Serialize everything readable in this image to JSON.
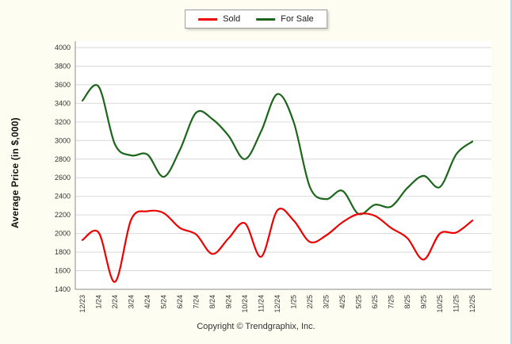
{
  "page": {
    "background": "#fdfdf2",
    "copyright": "Copyright © Trendgraphix, Inc."
  },
  "legend": {
    "items": [
      {
        "id": "sold",
        "label": "Sold",
        "color": "#ee0000"
      },
      {
        "id": "for-sale",
        "label": "For Sale",
        "color": "#1b661b"
      }
    ]
  },
  "chart_data": {
    "type": "line",
    "title": "",
    "xlabel": "",
    "ylabel": "Average Price (in $,000)",
    "ylim": [
      1400,
      4000
    ],
    "ytick_step": 200,
    "grid": "horizontal",
    "legend_position": "top-center",
    "line_style": "smooth",
    "categories": [
      "12/23",
      "1/24",
      "2/24",
      "3/24",
      "4/24",
      "5/24",
      "6/24",
      "7/24",
      "8/24",
      "9/24",
      "10/24",
      "11/24",
      "12/24",
      "1/25",
      "2/25",
      "3/25",
      "4/25",
      "5/25",
      "6/25",
      "7/25",
      "8/25",
      "9/25",
      "10/25",
      "11/25",
      "12/25"
    ],
    "series": [
      {
        "name": "Sold",
        "color": "#ee0000",
        "values": [
          1930,
          2010,
          1480,
          2150,
          2240,
          2220,
          2060,
          1990,
          1780,
          1950,
          2110,
          1750,
          2250,
          2140,
          1910,
          1980,
          2120,
          2210,
          2190,
          2060,
          1950,
          1720,
          2000,
          2010,
          2140
        ]
      },
      {
        "name": "For Sale",
        "color": "#1b661b",
        "values": [
          3430,
          3580,
          2960,
          2840,
          2850,
          2610,
          2900,
          3300,
          3230,
          3050,
          2800,
          3100,
          3500,
          3200,
          2500,
          2370,
          2460,
          2210,
          2310,
          2290,
          2490,
          2620,
          2500,
          2850,
          2990
        ]
      }
    ]
  }
}
